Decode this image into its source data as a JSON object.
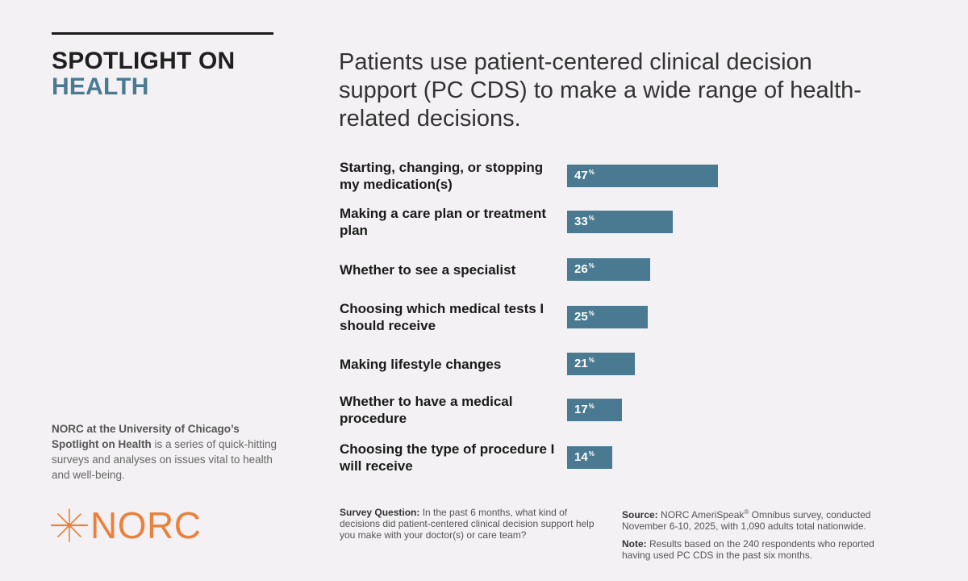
{
  "brand": {
    "line1": "SPOTLIGHT ON",
    "line2": "HEALTH"
  },
  "headline": "Patients use patient-centered clinical decision support (PC CDS) to make a wide range of health-related decisions.",
  "about": {
    "bold": "NORC at the University of Chicago’s Spotlight on Health",
    "rest": " is a series of quick-hitting surveys and analyses on issues vital to health and well-being."
  },
  "logo": {
    "text": "NORC",
    "icon": "norc-star-icon"
  },
  "colors": {
    "bar": "#4a7a92",
    "accent": "#e8823e",
    "brand_dark": "#1f1f1f"
  },
  "chart_data": {
    "type": "bar",
    "orientation": "horizontal",
    "title": "Patients use patient-centered clinical decision support (PC CDS) to make a wide range of health-related decisions.",
    "unit": "%",
    "categories": [
      "Starting, changing, or stopping my medication(s)",
      "Making a care plan or treatment plan",
      "Whether to see a specialist",
      "Choosing which medical tests I should receive",
      "Making lifestyle changes",
      "Whether to have a medical procedure",
      "Choosing the type of procedure I will receive"
    ],
    "values": [
      47,
      33,
      26,
      25,
      21,
      17,
      14
    ],
    "xlim": [
      0,
      100
    ],
    "grid": false
  },
  "footer": {
    "question_label": "Survey Question:",
    "question_text": " In the past 6 months, what kind of decisions did patient-centered clinical decision support help you make with your doctor(s) or care team?",
    "source_label": "Source:",
    "source_text_1": " NORC AmeriSpeak",
    "source_reg": "®",
    "source_text_2": " Omnibus survey, conducted November 6-10, 2025, with 1,090 adults total nationwide.",
    "note_label": "Note:",
    "note_text": " Results based on the 240 respondents who reported having used PC CDS in the past six months."
  }
}
